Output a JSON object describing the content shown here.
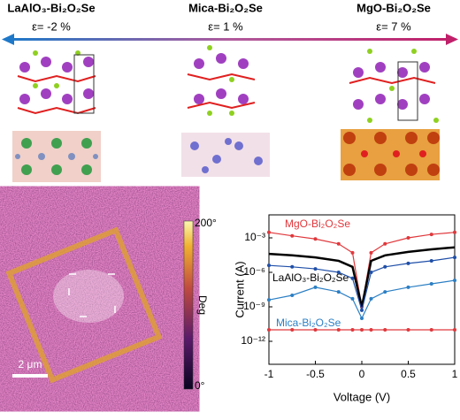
{
  "panels": [
    {
      "title": "LaAlO₃-Bi₂O₂Se",
      "strain": "ε= -2 %"
    },
    {
      "title": "Mica-Bi₂O₂Se",
      "strain": "ε= 1 %"
    },
    {
      "title": "MgO-Bi₂O₂Se",
      "strain": "ε= 7 %"
    }
  ],
  "pfm": {
    "colorbar_max": "200°",
    "colorbar_label": "Deg",
    "colorbar_min": "0°",
    "scale_bar": "2 μm"
  },
  "chart_data": {
    "type": "line",
    "xlabel": "Voltage (V)",
    "ylabel": "Current (A)",
    "x": [
      -1,
      -0.75,
      -0.5,
      -0.25,
      -0.1,
      0,
      0.1,
      0.25,
      0.5,
      0.75,
      1
    ],
    "series": [
      {
        "name": "MgO-Bi₂O₂Se",
        "color": "#e0383c",
        "marker": true,
        "values": [
          0.003,
          0.0015,
          0.0008,
          0.0003,
          5e-05,
          1e-09,
          5e-05,
          0.0003,
          0.001,
          0.002,
          0.003
        ]
      },
      {
        "name": "LaAlO₃-Bi₂O₂Se",
        "color": "#000000",
        "marker": false,
        "values": [
          4e-05,
          3e-05,
          2e-05,
          1e-05,
          3e-06,
          1e-09,
          1e-05,
          3e-05,
          6e-05,
          0.0001,
          0.00015
        ]
      },
      {
        "color": "#1f4fa8",
        "marker": true,
        "values": [
          4e-06,
          3e-06,
          2e-06,
          1e-06,
          3e-07,
          5e-10,
          1e-06,
          3e-06,
          6e-06,
          1e-05,
          2e-05
        ]
      },
      {
        "name": "Mica-Bi₂O₂Se",
        "color": "#2b7fc4",
        "marker": true,
        "values": [
          4e-09,
          1e-08,
          5e-08,
          2e-08,
          5e-09,
          1e-10,
          5e-09,
          2e-08,
          5e-08,
          1e-07,
          2e-07
        ]
      },
      {
        "color": "#e0383c",
        "marker": true,
        "values": [
          1e-11,
          1e-11,
          1e-11,
          1e-11,
          1e-11,
          1e-11,
          1e-11,
          1e-11,
          1e-11,
          1e-11,
          1e-11
        ]
      }
    ],
    "log_y": true,
    "xlim": [
      -1,
      1
    ],
    "xticks": [
      -1,
      -0.5,
      0,
      0.5,
      1
    ],
    "ylim": [
      1e-14,
      0.1
    ],
    "yticks": [
      {
        "value": 1e-12,
        "label": "10⁻¹²"
      },
      {
        "value": 1e-09,
        "label": "10⁻⁹"
      },
      {
        "value": 1e-06,
        "label": "10⁻⁶"
      },
      {
        "value": 0.001,
        "label": "10⁻³"
      }
    ]
  }
}
